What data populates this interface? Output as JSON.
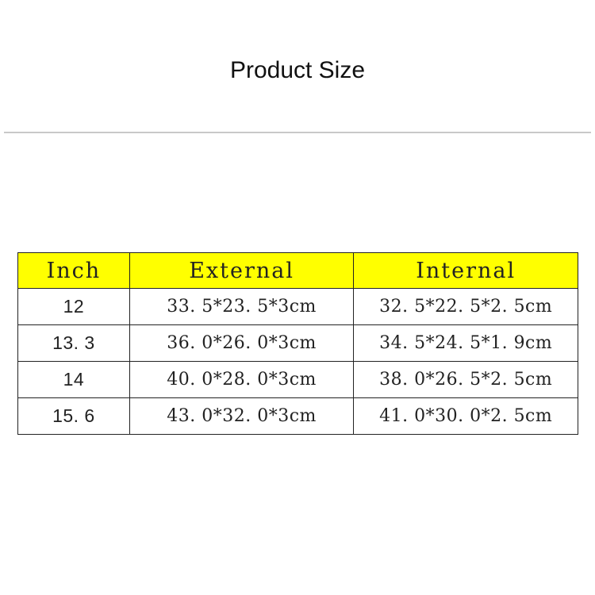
{
  "title": "Product Size",
  "table": {
    "headers": [
      "Inch",
      "External",
      "Internal"
    ],
    "rows": [
      [
        "12",
        "33. 5*23. 5*3cm",
        "32. 5*22. 5*2. 5cm"
      ],
      [
        "13. 3",
        "36. 0*26. 0*3cm",
        "34. 5*24. 5*1. 9cm"
      ],
      [
        "14",
        "40. 0*28. 0*3cm",
        "38. 0*26. 5*2. 5cm"
      ],
      [
        "15. 6",
        "43. 0*32. 0*3cm",
        "41. 0*30. 0*2. 5cm"
      ]
    ]
  },
  "colors": {
    "header_bg": "#ffff00"
  }
}
